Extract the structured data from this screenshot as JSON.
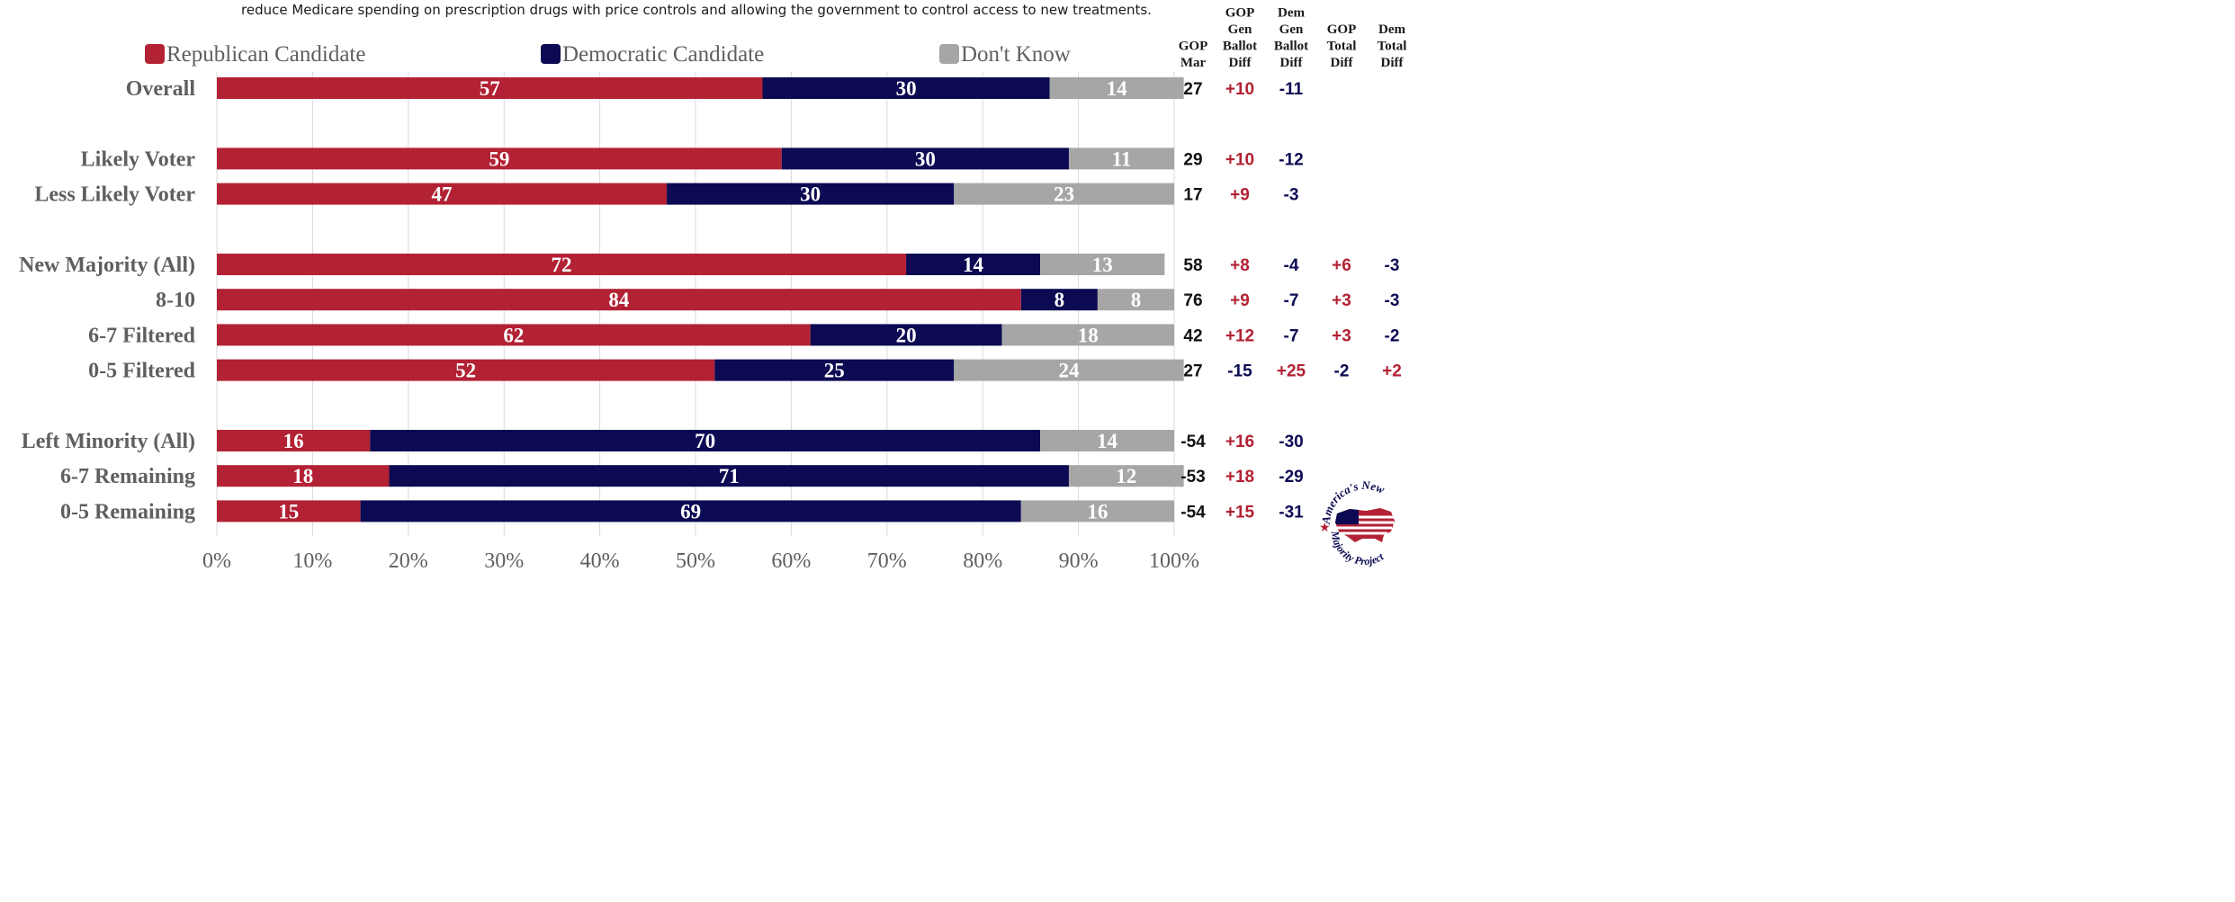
{
  "header_note": "reduce Medicare spending on prescription drugs with price controls and allowing the government to control access to new treatments.",
  "colors": {
    "republican": "#b32134",
    "democratic": "#0b0a52",
    "dont_know": "#a6a6a6",
    "label_gray": "#5f5f5f",
    "positive_red": "#b32134",
    "negative_navy": "#0b0a52",
    "grid": "#d9d9d9"
  },
  "legend": [
    "Republican Candidate",
    "Democratic Candidate",
    "Don't Know"
  ],
  "side_table": {
    "columns": [
      [
        "GOP",
        "Mar"
      ],
      [
        "GOP",
        "Gen",
        "Ballot",
        "Diff"
      ],
      [
        "Dem",
        "Gen",
        "Ballot",
        "Diff"
      ],
      [
        "GOP",
        "Total",
        "Diff"
      ],
      [
        "Dem",
        "Total",
        "Diff"
      ]
    ]
  },
  "chart_data": {
    "type": "bar",
    "orientation": "horizontal",
    "stacked": true,
    "categories": [
      "Overall",
      "Likely Voter",
      "Less Likely Voter",
      "New Majority (All)",
      "8-10",
      "6-7 Filtered",
      "0-5 Filtered",
      "Left Minority (All)",
      "6-7 Remaining",
      "0-5 Remaining"
    ],
    "series": [
      {
        "name": "Republican Candidate",
        "values": [
          57,
          59,
          47,
          72,
          84,
          62,
          52,
          16,
          18,
          15
        ]
      },
      {
        "name": "Democratic Candidate",
        "values": [
          30,
          30,
          30,
          14,
          8,
          20,
          25,
          70,
          71,
          69
        ]
      },
      {
        "name": "Don't Know",
        "values": [
          14,
          11,
          23,
          13,
          8,
          18,
          24,
          14,
          12,
          16
        ]
      }
    ],
    "x_ticks": [
      "0%",
      "10%",
      "20%",
      "30%",
      "40%",
      "50%",
      "60%",
      "70%",
      "80%",
      "90%",
      "100%"
    ],
    "xlim": [
      0,
      100
    ],
    "grid": true,
    "legend_position": "top",
    "side_values": {
      "gop_mar": [
        "27",
        "29",
        "17",
        "58",
        "76",
        "42",
        "27",
        "-54",
        "-53",
        "-54"
      ],
      "gop_gen_ballot_diff": [
        "+10",
        "+10",
        "+9",
        "+8",
        "+9",
        "+12",
        "-15",
        "+16",
        "+18",
        "+15"
      ],
      "dem_gen_ballot_diff": [
        "-11",
        "-12",
        "-3",
        "-4",
        "-7",
        "-7",
        "+25",
        "-30",
        "-29",
        "-31"
      ],
      "gop_total_diff": [
        "",
        "",
        "",
        "+6",
        "+3",
        "+3",
        "-2",
        "",
        "",
        ""
      ],
      "dem_total_diff": [
        "",
        "",
        "",
        "-3",
        "-3",
        "-2",
        "+2",
        "",
        "",
        ""
      ]
    }
  },
  "logo": {
    "top_text": "America's New",
    "bottom_text": "Majority Project"
  }
}
